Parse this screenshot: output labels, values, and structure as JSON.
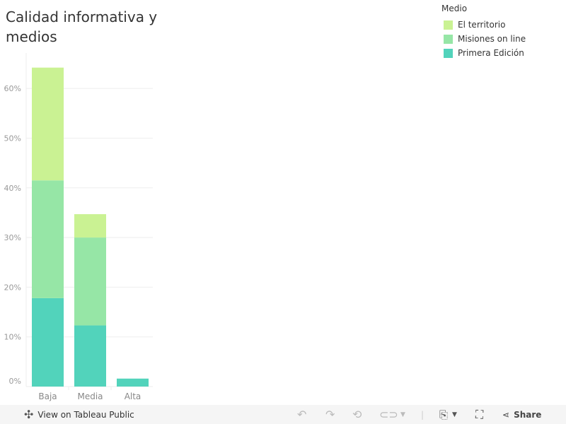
{
  "title": "Calidad informativa y medios",
  "legend": {
    "title": "Medio"
  },
  "chart_data": {
    "type": "bar",
    "stacked": true,
    "title": "Calidad informativa y medios",
    "categories": [
      "Baja",
      "Media",
      "Alta"
    ],
    "series": [
      {
        "name": "Primera Edición",
        "color": "#52d3bb",
        "values": [
          17.8,
          12.3,
          1.6
        ]
      },
      {
        "name": "Misiones on line",
        "color": "#96e6a6",
        "values": [
          23.7,
          17.7,
          0
        ]
      },
      {
        "name": "El territorio",
        "color": "#caf293",
        "values": [
          22.7,
          4.7,
          0
        ]
      }
    ],
    "ylim": [
      0,
      67
    ],
    "yticks": [
      0,
      10,
      20,
      30,
      40,
      50,
      60
    ],
    "ytick_labels": [
      "0%",
      "10%",
      "20%",
      "30%",
      "40%",
      "50%",
      "60%"
    ],
    "xlabel": "",
    "ylabel": "",
    "grid": true,
    "legend_position": "top-right"
  },
  "toolbar": {
    "view_label": "View on Tableau Public",
    "share_label": "Share"
  }
}
